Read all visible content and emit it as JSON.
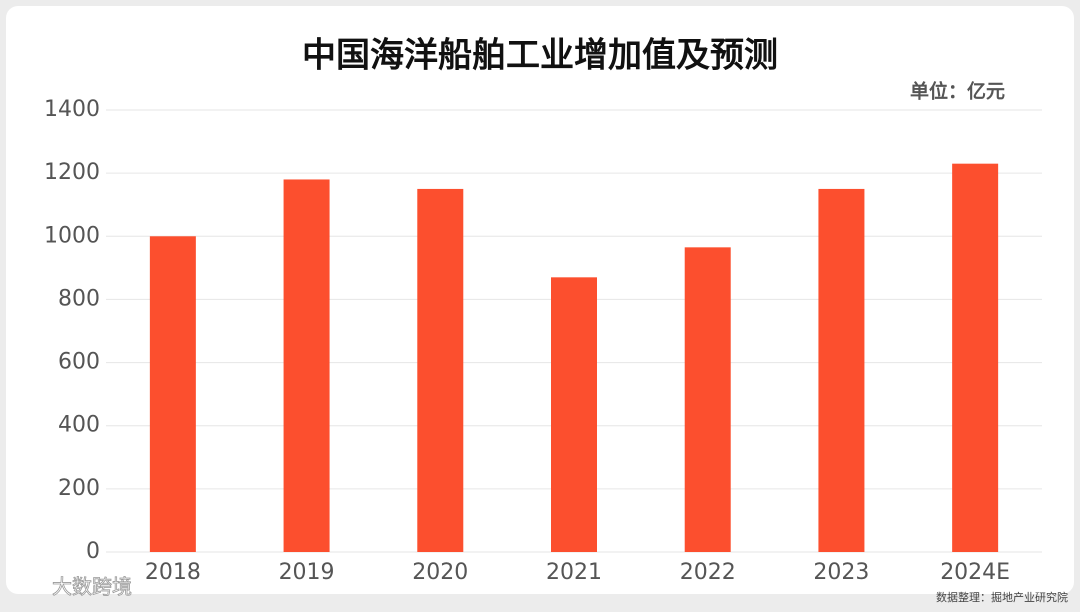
{
  "chart_data": {
    "type": "bar",
    "title": "中国海洋船舶工业增加值及预测",
    "unit": "单位：亿元",
    "categories": [
      "2018",
      "2019",
      "2020",
      "2021",
      "2022",
      "2023",
      "2024E"
    ],
    "values": [
      1000,
      1180,
      1150,
      870,
      965,
      1150,
      1230
    ],
    "color": "#fc4f2e",
    "ylim": [
      0,
      1400
    ],
    "yticks": [
      0,
      200,
      400,
      600,
      800,
      1000,
      1200,
      1400
    ],
    "grid": true,
    "source": "数据整理：掘地产业研究院",
    "watermark": "大数跨境"
  }
}
